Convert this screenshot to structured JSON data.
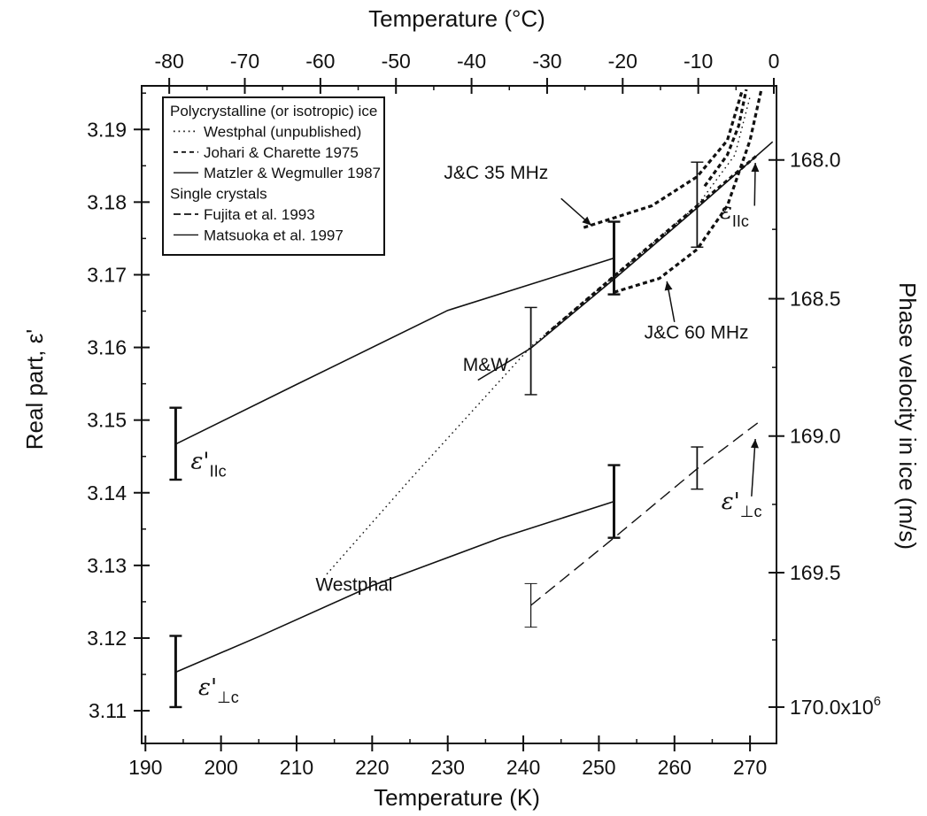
{
  "chart_data": {
    "type": "line",
    "xlabel": "Temperature (K)",
    "x2label": "Temperature (°C)",
    "ylabel": "Real part, ε'",
    "y2label": "Phase velocity in ice (m/s)",
    "xlim": [
      189.5,
      273.5
    ],
    "ylim": [
      3.1055,
      3.196
    ],
    "grid": false,
    "x_ticks": [
      190,
      200,
      210,
      220,
      230,
      240,
      250,
      260,
      270
    ],
    "y_ticks": [
      3.11,
      3.12,
      3.13,
      3.14,
      3.15,
      3.16,
      3.17,
      3.18,
      3.19
    ],
    "x2_ticks": [
      -80,
      -70,
      -60,
      -50,
      -40,
      -30,
      -20,
      -10,
      0
    ],
    "y2_ticks": [
      {
        "label": "168.0",
        "eps": 3.1858
      },
      {
        "label": "168.5",
        "eps": 3.1667
      },
      {
        "label": "169.0",
        "eps": 3.1478
      },
      {
        "label": "169.5",
        "eps": 3.129
      },
      {
        "label": "170.0x10",
        "sup": "6",
        "eps": 3.1105
      }
    ],
    "legend": {
      "position": "top-left",
      "entries": [
        {
          "text": "Polycrystalline (or isotropic) ice",
          "style": "header"
        },
        {
          "text": "Westphal (unpublished)",
          "style": "dotted"
        },
        {
          "text": "Johari & Charette 1975",
          "style": "short-dash"
        },
        {
          "text": "Matzler & Wegmuller 1987",
          "style": "solid"
        },
        {
          "text": "Single crystals",
          "style": "header"
        },
        {
          "text": "Fujita et al. 1993",
          "style": "long-dash"
        },
        {
          "text": "Matsuoka et al. 1997",
          "style": "solid"
        }
      ]
    },
    "series": [
      {
        "id": "matsuoka-par",
        "style": "solid",
        "width": 1.6,
        "points": [
          [
            194,
            3.1467
          ],
          [
            210,
            3.1549
          ],
          [
            230,
            3.1651
          ],
          [
            252,
            3.1723
          ]
        ]
      },
      {
        "id": "matsuoka-perp",
        "style": "solid",
        "width": 1.6,
        "points": [
          [
            194,
            3.1153
          ],
          [
            205,
            3.1202
          ],
          [
            220,
            3.1272
          ],
          [
            237,
            3.1338
          ],
          [
            252,
            3.1388
          ]
        ]
      },
      {
        "id": "fujita-perp",
        "style": "long-dash",
        "width": 1.4,
        "points": [
          [
            241,
            3.1245
          ],
          [
            252,
            3.1338
          ],
          [
            263,
            3.1433
          ],
          [
            271,
            3.1496
          ]
        ]
      },
      {
        "id": "westphal",
        "style": "dotted",
        "width": 1.4,
        "points": [
          [
            214,
            3.1288
          ],
          [
            225,
            3.1418
          ],
          [
            241,
            3.1601
          ],
          [
            252,
            3.1698
          ],
          [
            263,
            3.1795
          ],
          [
            268,
            3.1865
          ],
          [
            270,
            3.1945
          ]
        ]
      },
      {
        "id": "matzler-wegmuller",
        "style": "solid",
        "width": 1.6,
        "points": [
          [
            234,
            3.1555
          ],
          [
            241,
            3.1599
          ],
          [
            252,
            3.1694
          ],
          [
            263,
            3.1792
          ],
          [
            273,
            3.1883
          ]
        ]
      },
      {
        "id": "johari-charette-par",
        "style": "short-dash-heavy",
        "width": 3.2,
        "points": [
          [
            243,
            3.1618
          ],
          [
            252,
            3.1698
          ],
          [
            263,
            3.1795
          ],
          [
            271,
            3.1865
          ]
        ]
      },
      {
        "id": "jc-35mhz",
        "style": "short-dash-heavy",
        "width": 3.2,
        "points": [
          [
            248,
            3.1765
          ],
          [
            257,
            3.1795
          ],
          [
            263,
            3.1835
          ],
          [
            267,
            3.1885
          ],
          [
            269,
            3.1955
          ]
        ]
      },
      {
        "id": "jc-35mhz-b",
        "style": "short-dash-heavy",
        "width": 3.2,
        "points": [
          [
            264,
            3.1822
          ],
          [
            267,
            3.1865
          ],
          [
            268.5,
            3.1905
          ],
          [
            269.5,
            3.1955
          ]
        ]
      },
      {
        "id": "jc-60mhz",
        "style": "short-dash-heavy",
        "width": 3.2,
        "points": [
          [
            252,
            3.1676
          ],
          [
            258,
            3.1695
          ],
          [
            263,
            3.1735
          ],
          [
            267,
            3.1795
          ],
          [
            270,
            3.1885
          ],
          [
            271.5,
            3.1955
          ]
        ]
      }
    ],
    "error_bars": [
      {
        "x": 194,
        "y": 3.1468,
        "low": 3.1418,
        "high": 3.1517,
        "weight": "heavy"
      },
      {
        "x": 194,
        "y": 3.1155,
        "low": 3.1105,
        "high": 3.1203,
        "weight": "heavy"
      },
      {
        "x": 241,
        "y": 3.1595,
        "low": 3.1535,
        "high": 3.1655,
        "weight": "normal"
      },
      {
        "x": 252,
        "y": 3.1723,
        "low": 3.1673,
        "high": 3.1773,
        "weight": "heavy"
      },
      {
        "x": 252,
        "y": 3.1388,
        "low": 3.1338,
        "high": 3.1438,
        "weight": "heavy"
      },
      {
        "x": 263,
        "y": 3.1795,
        "low": 3.1738,
        "high": 3.1855,
        "weight": "normal"
      },
      {
        "x": 241,
        "y": 3.1245,
        "low": 3.1215,
        "high": 3.1275,
        "weight": "light"
      },
      {
        "x": 263,
        "y": 3.1433,
        "low": 3.1405,
        "high": 3.1463,
        "weight": "normal"
      }
    ],
    "annotations": [
      {
        "id": "label-westphal",
        "text": "Westphal",
        "x": 212.5,
        "y": 3.1265
      },
      {
        "id": "label-mw",
        "text": "M&W",
        "x": 232,
        "y": 3.1568
      },
      {
        "id": "label-jc35",
        "text": "J&C 35 MHz",
        "x": 229.5,
        "y": 3.1832
      },
      {
        "id": "label-jc60",
        "text": "J&C 60 MHz",
        "x": 256,
        "y": 3.1612
      }
    ],
    "symbol_labels": [
      {
        "id": "eps-par-left",
        "base": "ε'",
        "sub": "IIc",
        "x": 196,
        "y": 3.1433
      },
      {
        "id": "eps-perp-left",
        "base": "ε'",
        "sub": "⊥c",
        "x": 197,
        "y": 3.1122
      },
      {
        "id": "eps-perp-right",
        "base": "ε'",
        "sub": "⊥c",
        "x": 266.2,
        "y": 3.1378
      },
      {
        "id": "eps-par-right",
        "base": "ε",
        "sub": "IIc",
        "x": 266,
        "y": 3.1777
      }
    ],
    "arrows": [
      {
        "id": "arrow-jc35",
        "from": [
          245,
          3.1805
        ],
        "to": [
          249,
          3.1768
        ]
      },
      {
        "id": "arrow-jc60",
        "from": [
          260,
          3.1635
        ],
        "to": [
          259,
          3.1691
        ]
      },
      {
        "id": "arrow-eps-perp-right",
        "from": [
          270.2,
          3.1395
        ],
        "to": [
          270.7,
          3.1474
        ]
      },
      {
        "id": "arrow-eps-par-right",
        "from": [
          270.6,
          3.1795
        ],
        "to": [
          270.7,
          3.1854
        ]
      }
    ]
  }
}
